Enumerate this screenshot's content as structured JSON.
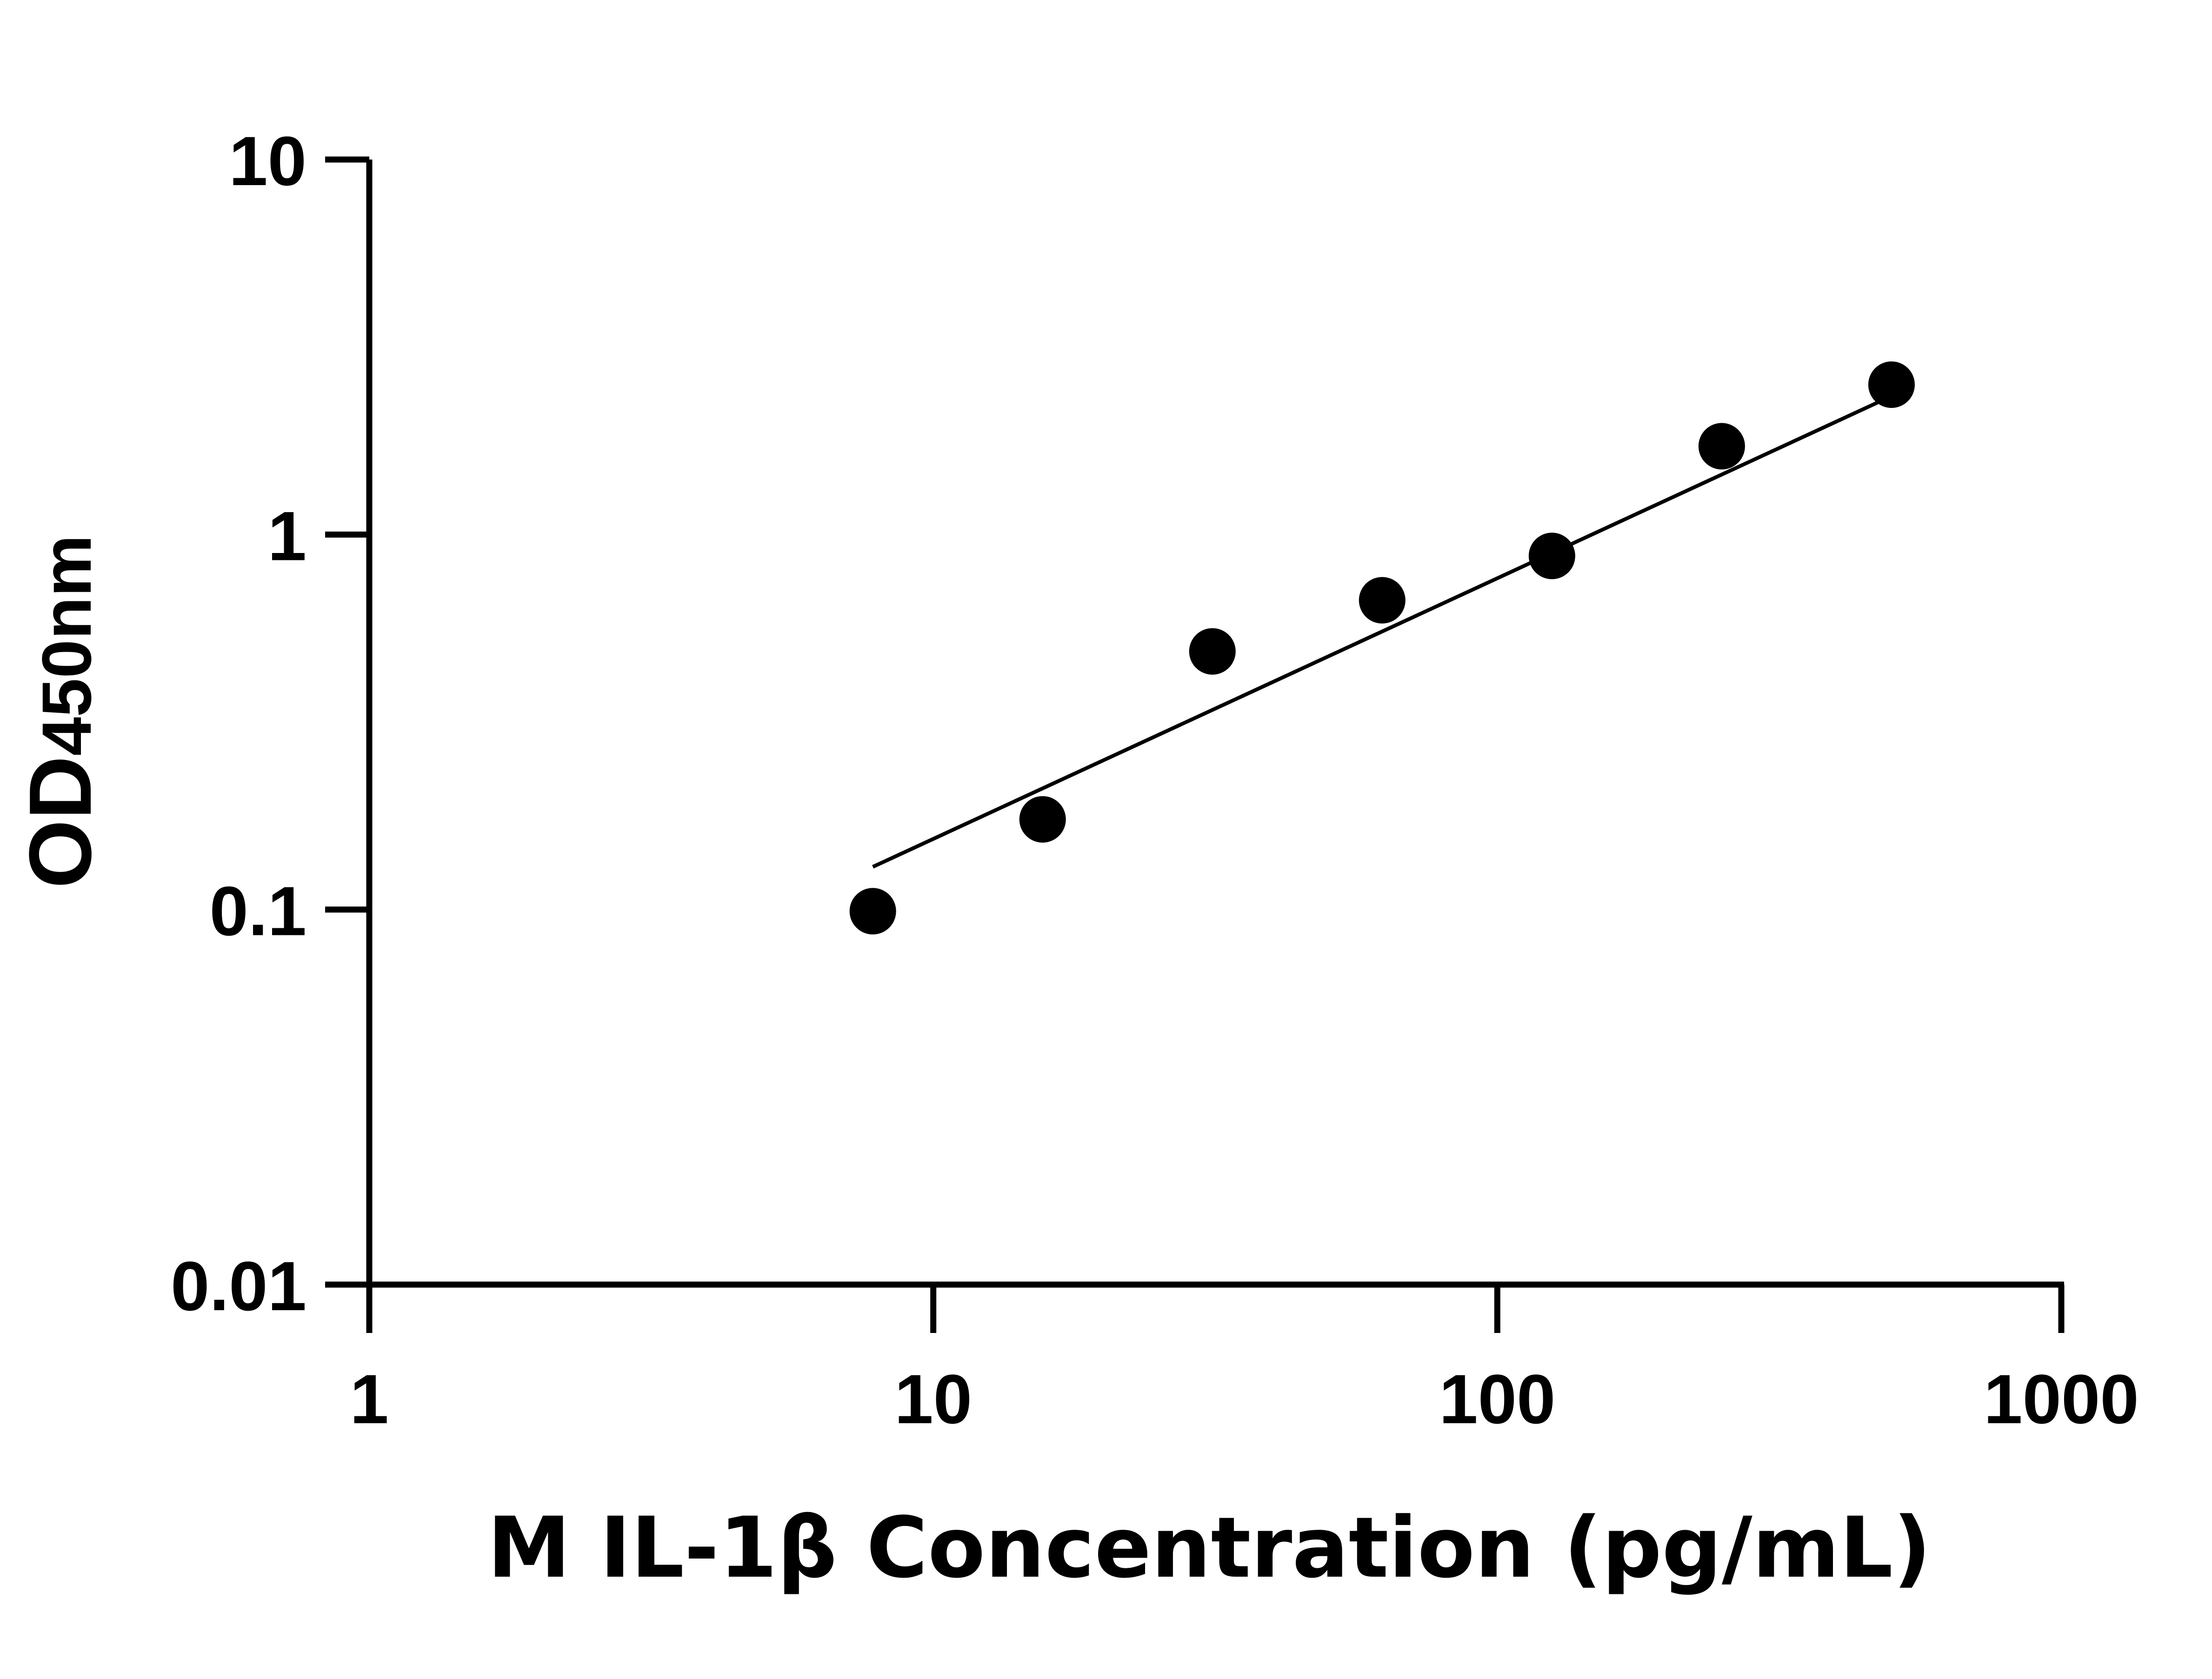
{
  "chart_data": {
    "type": "scatter",
    "xlabel": "M IL-1β Concentration (pg/mL)",
    "ylabel_main": "OD",
    "ylabel_sub": "450nm",
    "x_scale": "log",
    "y_scale": "log",
    "xlim": [
      1,
      1000
    ],
    "ylim": [
      0.01,
      10
    ],
    "x_ticks": [
      "1",
      "10",
      "100",
      "1000"
    ],
    "y_ticks": [
      "0.01",
      "0.1",
      "1",
      "10"
    ],
    "grid": false,
    "points": {
      "x": [
        7.8125,
        15.625,
        31.25,
        62.5,
        125,
        250,
        500
      ],
      "y": [
        0.099,
        0.174,
        0.488,
        0.668,
        0.877,
        1.72,
        2.51
      ]
    },
    "fit_line": {
      "x": [
        7.8125,
        500
      ],
      "y": [
        0.13,
        2.34
      ]
    },
    "colors": {
      "marker": "#000000",
      "line": "#000000",
      "axis": "#000000"
    }
  }
}
